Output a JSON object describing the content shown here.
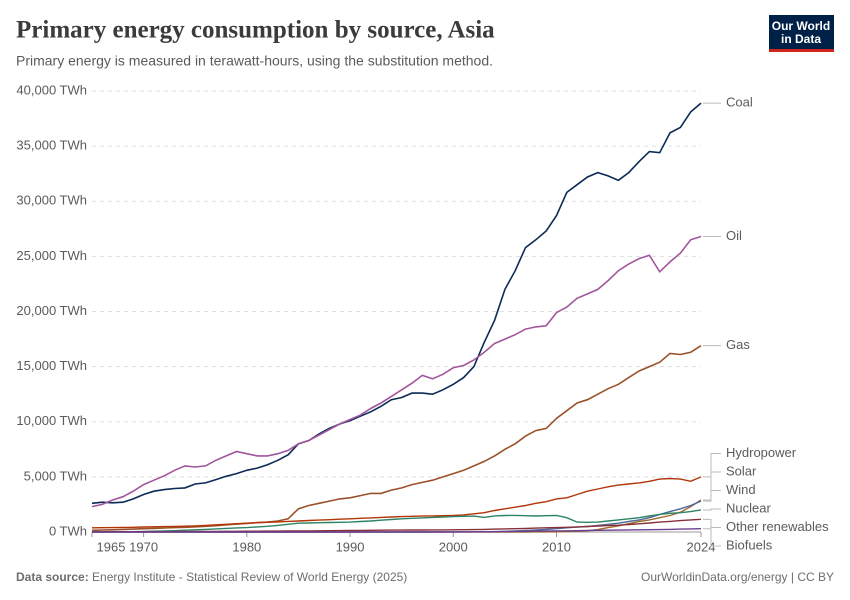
{
  "header": {
    "logo": [
      "Our World",
      "in Data"
    ]
  },
  "footer": {
    "source_label": "Data source:",
    "source": "Energy Institute - Statistical Review of World Energy (2025)",
    "link": "OurWorldinData.org/energy | CC BY"
  },
  "chart_data": {
    "type": "line",
    "title": "Primary energy consumption by source, Asia",
    "subtitle": "Primary energy is measured in terawatt-hours, using the substitution method.",
    "x": [
      1965,
      1966,
      1967,
      1968,
      1969,
      1970,
      1971,
      1972,
      1973,
      1974,
      1975,
      1976,
      1977,
      1978,
      1979,
      1980,
      1981,
      1982,
      1983,
      1984,
      1985,
      1986,
      1987,
      1988,
      1989,
      1990,
      1991,
      1992,
      1993,
      1994,
      1995,
      1996,
      1997,
      1998,
      1999,
      2000,
      2001,
      2002,
      2003,
      2004,
      2005,
      2006,
      2007,
      2008,
      2009,
      2010,
      2011,
      2012,
      2013,
      2014,
      2015,
      2016,
      2017,
      2018,
      2019,
      2020,
      2021,
      2022,
      2023,
      2024
    ],
    "xlim": [
      1965,
      2024
    ],
    "xticks": [
      1965,
      1970,
      1980,
      1990,
      2000,
      2010,
      2024
    ],
    "ylim": [
      0,
      40000
    ],
    "yticks": [
      {
        "value": 0,
        "label": "0 TWh"
      },
      {
        "value": 5000,
        "label": "5,000 TWh"
      },
      {
        "value": 10000,
        "label": "10,000 TWh"
      },
      {
        "value": 15000,
        "label": "15,000 TWh"
      },
      {
        "value": 20000,
        "label": "20,000 TWh"
      },
      {
        "value": 25000,
        "label": "25,000 TWh"
      },
      {
        "value": 30000,
        "label": "30,000 TWh"
      },
      {
        "value": 35000,
        "label": "35,000 TWh"
      },
      {
        "value": 40000,
        "label": "40,000 TWh"
      }
    ],
    "grid": true,
    "series": [
      {
        "name": "Coal",
        "color": "#0b2a55",
        "values": [
          2600,
          2700,
          2650,
          2700,
          3000,
          3400,
          3700,
          3850,
          3950,
          4000,
          4350,
          4450,
          4750,
          5050,
          5300,
          5600,
          5800,
          6100,
          6500,
          7000,
          8000,
          8300,
          8900,
          9400,
          9800,
          10100,
          10500,
          10900,
          11400,
          12000,
          12200,
          12600,
          12600,
          12500,
          12900,
          13400,
          14000,
          15000,
          17200,
          19200,
          22000,
          23700,
          25800,
          26500,
          27300,
          28700,
          30800,
          31500,
          32200,
          32600,
          32300,
          31900,
          32600,
          33600,
          34500,
          34400,
          36200,
          36700,
          38100,
          38900
        ]
      },
      {
        "name": "Oil",
        "color": "#a2559c",
        "values": [
          2300,
          2500,
          2900,
          3200,
          3700,
          4300,
          4700,
          5100,
          5600,
          6000,
          5900,
          6000,
          6500,
          6900,
          7300,
          7100,
          6900,
          6900,
          7100,
          7400,
          8000,
          8300,
          8800,
          9300,
          9800,
          10200,
          10600,
          11200,
          11700,
          12300,
          12900,
          13500,
          14200,
          13900,
          14300,
          14900,
          15100,
          15600,
          16300,
          17100,
          17500,
          17900,
          18400,
          18600,
          18700,
          19900,
          20400,
          21200,
          21600,
          22000,
          22800,
          23700,
          24300,
          24800,
          25100,
          23600,
          24500,
          25300,
          26500,
          26800
        ]
      },
      {
        "name": "Gas",
        "color": "#9a5129",
        "values": [
          150,
          180,
          200,
          230,
          260,
          300,
          330,
          360,
          400,
          430,
          470,
          520,
          570,
          650,
          720,
          780,
          850,
          900,
          1000,
          1200,
          2100,
          2400,
          2600,
          2800,
          3000,
          3100,
          3300,
          3500,
          3500,
          3800,
          4000,
          4300,
          4500,
          4700,
          5000,
          5300,
          5600,
          6000,
          6400,
          6900,
          7500,
          8000,
          8700,
          9200,
          9400,
          10300,
          11000,
          11700,
          12000,
          12500,
          13000,
          13400,
          14000,
          14600,
          15000,
          15400,
          16200,
          16100,
          16300,
          16900
        ]
      },
      {
        "name": "Hydropower",
        "color": "#b13507",
        "values": [
          380,
          390,
          400,
          410,
          430,
          450,
          470,
          490,
          510,
          530,
          550,
          600,
          650,
          700,
          750,
          800,
          840,
          880,
          920,
          960,
          1000,
          1040,
          1080,
          1120,
          1160,
          1200,
          1240,
          1280,
          1320,
          1360,
          1400,
          1420,
          1440,
          1460,
          1480,
          1500,
          1550,
          1650,
          1750,
          1950,
          2100,
          2250,
          2400,
          2600,
          2750,
          3000,
          3100,
          3400,
          3700,
          3900,
          4100,
          4250,
          4350,
          4450,
          4600,
          4800,
          4850,
          4800,
          4600,
          5000
        ]
      },
      {
        "name": "Solar",
        "color": "#a06b2a",
        "values": [
          0,
          0,
          0,
          0,
          0,
          0,
          0,
          0,
          0,
          0,
          0,
          0,
          0,
          0,
          0,
          0,
          0,
          0,
          0,
          0,
          0,
          0,
          0,
          0,
          0,
          0,
          0,
          0,
          0,
          0,
          0,
          0,
          0,
          0,
          0,
          0,
          0,
          0,
          0,
          0,
          1,
          2,
          3,
          5,
          8,
          20,
          40,
          70,
          120,
          220,
          400,
          550,
          750,
          950,
          1100,
          1300,
          1500,
          1800,
          2300,
          2900
        ]
      },
      {
        "name": "Wind",
        "color": "#4c6a9c",
        "values": [
          0,
          0,
          0,
          0,
          0,
          0,
          0,
          0,
          0,
          0,
          0,
          0,
          0,
          0,
          0,
          0,
          0,
          0,
          0,
          0,
          0,
          0,
          0,
          0,
          0,
          0,
          0,
          0,
          0,
          0,
          1,
          2,
          3,
          5,
          7,
          10,
          15,
          20,
          30,
          40,
          60,
          90,
          130,
          180,
          240,
          300,
          380,
          440,
          500,
          600,
          700,
          800,
          950,
          1100,
          1300,
          1600,
          1850,
          2100,
          2400,
          2800
        ]
      },
      {
        "name": "Nuclear",
        "color": "#2c8465",
        "values": [
          0,
          5,
          10,
          20,
          30,
          50,
          70,
          90,
          120,
          160,
          200,
          240,
          280,
          330,
          370,
          400,
          460,
          520,
          600,
          700,
          800,
          820,
          840,
          860,
          880,
          900,
          950,
          1000,
          1070,
          1130,
          1200,
          1240,
          1280,
          1320,
          1360,
          1400,
          1420,
          1440,
          1320,
          1460,
          1500,
          1510,
          1480,
          1450,
          1480,
          1500,
          1300,
          900,
          880,
          900,
          1000,
          1100,
          1200,
          1300,
          1450,
          1600,
          1700,
          1750,
          1850,
          2000
        ]
      },
      {
        "name": "Other renewables",
        "color": "#883039",
        "values": [
          20,
          22,
          24,
          26,
          28,
          30,
          33,
          36,
          40,
          44,
          48,
          52,
          56,
          60,
          65,
          70,
          75,
          80,
          85,
          90,
          95,
          100,
          110,
          120,
          130,
          140,
          145,
          150,
          160,
          170,
          175,
          180,
          185,
          190,
          195,
          200,
          210,
          220,
          240,
          260,
          280,
          300,
          320,
          350,
          380,
          400,
          430,
          460,
          500,
          540,
          580,
          620,
          680,
          740,
          820,
          900,
          960,
          1030,
          1100,
          1150
        ]
      },
      {
        "name": "Biofuels",
        "color": "#6d3e91",
        "values": [
          0,
          0,
          0,
          0,
          0,
          0,
          0,
          0,
          0,
          0,
          0,
          0,
          0,
          0,
          0,
          0,
          0,
          0,
          0,
          0,
          0,
          0,
          0,
          0,
          0,
          0,
          0,
          0,
          0,
          0,
          0,
          0,
          0,
          0,
          0,
          10,
          12,
          15,
          20,
          25,
          35,
          50,
          65,
          80,
          90,
          100,
          110,
          120,
          140,
          150,
          160,
          170,
          190,
          200,
          210,
          220,
          240,
          260,
          280,
          300
        ]
      }
    ]
  }
}
